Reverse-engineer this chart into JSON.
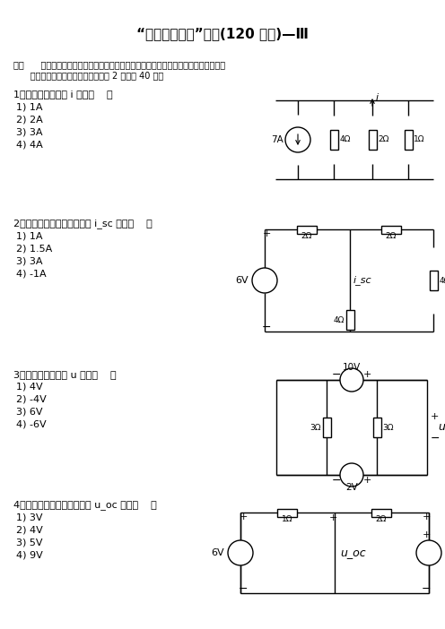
{
  "title": "“电路分析基础”试题(120 分钟)—Ⅲ",
  "instr1": "一、      单项选择题（在每个小题的四个备选答案中，选出一个正确答案，并将正确答案",
  "instr2": "      的号码填入提子的括号内．每小题 2 分，共 40 分）",
  "q1": "1、图示电路中电流 i 等于（    ）",
  "q1_opts": [
    "1) 1A",
    "2) 2A",
    "3) 3A",
    "4) 4A"
  ],
  "q2": "2、图示单口网络的短路电流 i_sc 等于（    ）",
  "q2_opts": [
    "1) 1A",
    "2) 1.5A",
    "3) 3A",
    "4) -1A"
  ],
  "q3": "3、图示电路中电压 u 等于（    ）",
  "q3_opts": [
    "1) 4V",
    "2) -4V",
    "3) 6V",
    "4) -6V"
  ],
  "q4": "4、图示单口网络的开路电压 u_oc 等于（    ）",
  "q4_opts": [
    "1) 3V",
    "2) 4V",
    "3) 5V",
    "4) 9V"
  ],
  "bg": "#ffffff"
}
